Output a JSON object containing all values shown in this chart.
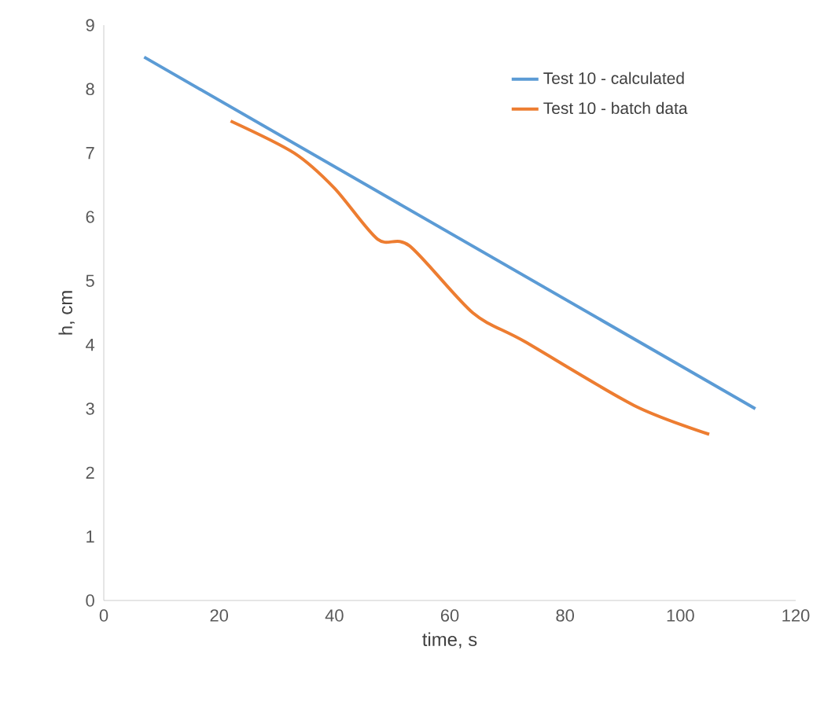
{
  "chart_data": {
    "type": "line",
    "xlabel": "time, s",
    "ylabel": "h, cm",
    "xlim": [
      0,
      120
    ],
    "xticks": [
      0,
      20,
      40,
      60,
      80,
      100,
      120
    ],
    "ylim": [
      0,
      9
    ],
    "yticks": [
      0,
      1,
      2,
      3,
      4,
      5,
      6,
      7,
      8,
      9
    ],
    "legend": "top right",
    "grid": false,
    "marker": "none",
    "line_style": "solid",
    "series": [
      {
        "name": "Test 10 - calculated",
        "color": "#5b9bd5",
        "x": [
          7,
          113
        ],
        "values": [
          8.5,
          3.0
        ]
      },
      {
        "name": "Test 10 - batch data",
        "color": "#ed7d31",
        "x": [
          22,
          33,
          40,
          47.5,
          53,
          64,
          73,
          92,
          105
        ],
        "values": [
          7.5,
          7.0,
          6.45,
          5.65,
          5.55,
          4.5,
          4.05,
          3.05,
          2.6
        ]
      }
    ]
  }
}
